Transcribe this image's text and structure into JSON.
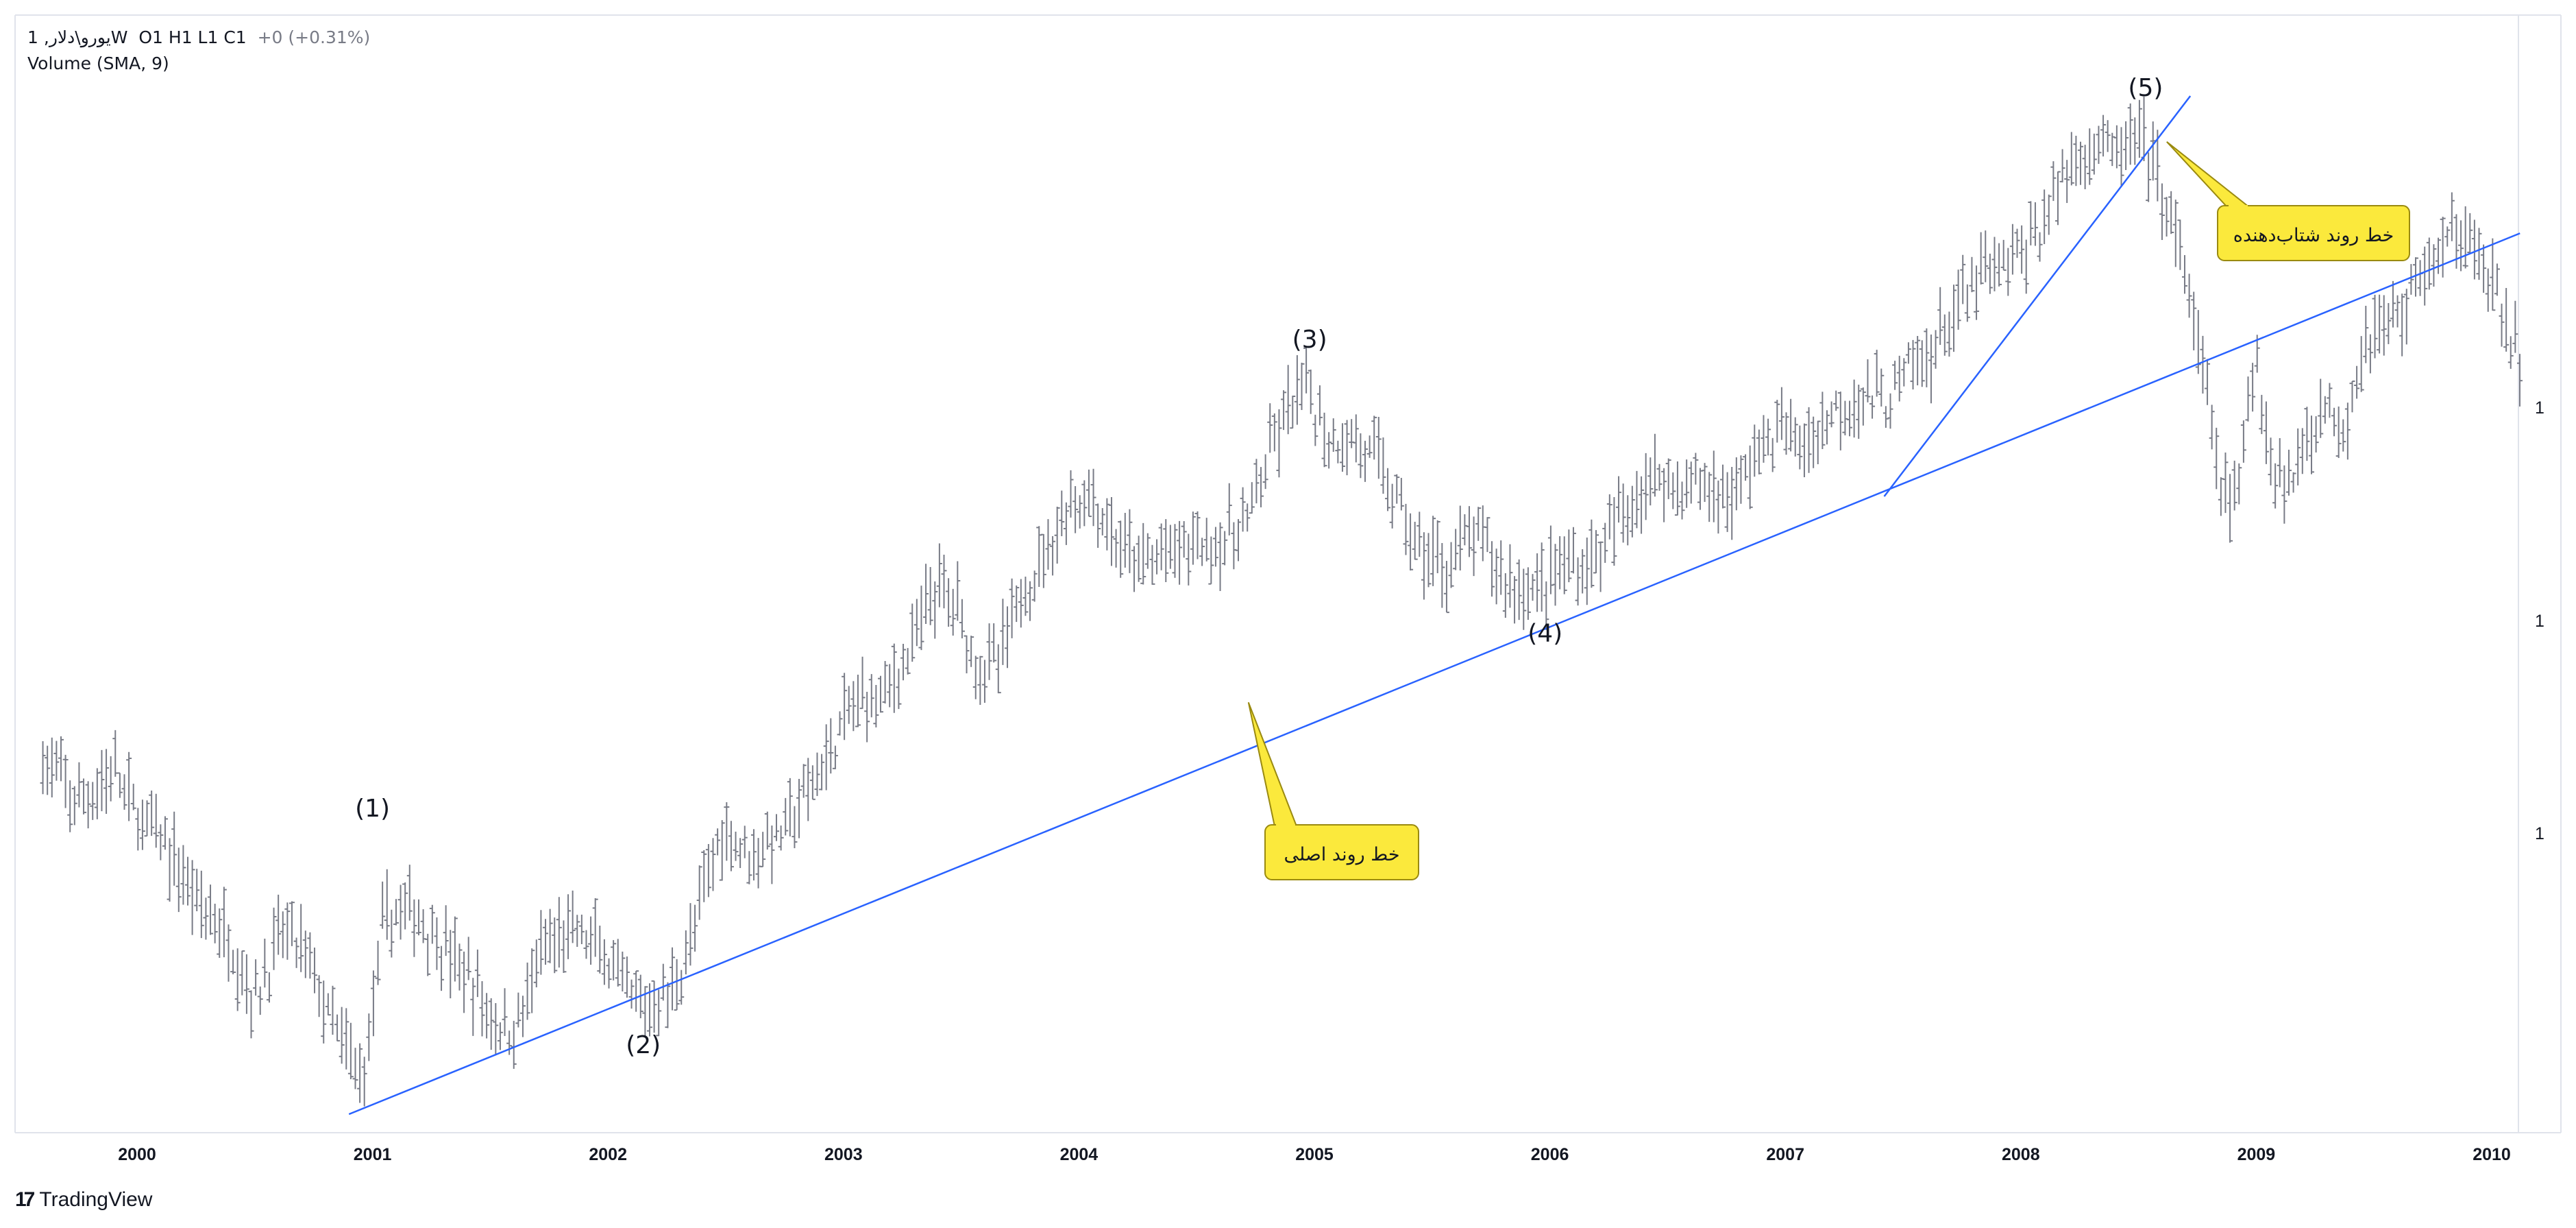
{
  "header": {
    "symbol": "1 ,یورو\\دلارW",
    "ohlc": "O1  H1  L1  C1",
    "change": "+0 (+0.31%)",
    "indicator": "Volume (SMA, 9)"
  },
  "footer": {
    "logo_mark": "17",
    "brand": "TradingView"
  },
  "colors": {
    "bars": "#787b86",
    "trendline": "#2962ff",
    "callout_fill": "#fbe93c",
    "callout_border": "#9a8a10",
    "axis_text": "#131722",
    "grid_border": "#e0e3eb"
  },
  "chart_data": {
    "type": "ohlc-bar",
    "title": "",
    "x_axis": {
      "labels": [
        "2000",
        "2001",
        "2002",
        "2003",
        "2004",
        "2005",
        "2006",
        "2007",
        "2008",
        "2009",
        "2010"
      ]
    },
    "y_axis": {
      "labels": [
        "1",
        "1",
        "1"
      ]
    },
    "price_series": [
      [
        1999.6,
        1.03
      ],
      [
        1999.75,
        0.99
      ],
      [
        1999.9,
        1.02
      ],
      [
        2000.0,
        0.98
      ],
      [
        2000.1,
        0.96
      ],
      [
        2000.25,
        0.91
      ],
      [
        2000.4,
        0.87
      ],
      [
        2000.5,
        0.82
      ],
      [
        2000.62,
        0.88
      ],
      [
        2000.72,
        0.86
      ],
      [
        2000.82,
        0.8
      ],
      [
        2000.9,
        0.77
      ],
      [
        2000.96,
        0.75
      ],
      [
        2001.05,
        0.89
      ],
      [
        2001.15,
        0.9
      ],
      [
        2001.25,
        0.88
      ],
      [
        2001.4,
        0.84
      ],
      [
        2001.52,
        0.8
      ],
      [
        2001.6,
        0.79
      ],
      [
        2001.72,
        0.86
      ],
      [
        2001.85,
        0.88
      ],
      [
        2001.98,
        0.86
      ],
      [
        2002.05,
        0.83
      ],
      [
        2002.15,
        0.81
      ],
      [
        2002.28,
        0.83
      ],
      [
        2002.38,
        0.89
      ],
      [
        2002.48,
        0.97
      ],
      [
        2002.6,
        0.95
      ],
      [
        2002.72,
        0.96
      ],
      [
        2002.85,
        1.0
      ],
      [
        2002.95,
        1.04
      ],
      [
        2003.05,
        1.08
      ],
      [
        2003.18,
        1.09
      ],
      [
        2003.3,
        1.13
      ],
      [
        2003.38,
        1.18
      ],
      [
        2003.48,
        1.17
      ],
      [
        2003.55,
        1.12
      ],
      [
        2003.65,
        1.11
      ],
      [
        2003.75,
        1.17
      ],
      [
        2003.85,
        1.21
      ],
      [
        2003.95,
        1.25
      ],
      [
        2004.05,
        1.26
      ],
      [
        2004.15,
        1.22
      ],
      [
        2004.25,
        1.2
      ],
      [
        2004.38,
        1.21
      ],
      [
        2004.5,
        1.22
      ],
      [
        2004.62,
        1.22
      ],
      [
        2004.72,
        1.24
      ],
      [
        2004.82,
        1.3
      ],
      [
        2004.9,
        1.34
      ],
      [
        2004.98,
        1.35
      ],
      [
        2005.05,
        1.31
      ],
      [
        2005.15,
        1.31
      ],
      [
        2005.22,
        1.3
      ],
      [
        2005.3,
        1.28
      ],
      [
        2005.38,
        1.24
      ],
      [
        2005.45,
        1.21
      ],
      [
        2005.55,
        1.2
      ],
      [
        2005.65,
        1.22
      ],
      [
        2005.72,
        1.22
      ],
      [
        2005.8,
        1.19
      ],
      [
        2005.88,
        1.18
      ],
      [
        2005.95,
        1.18
      ],
      [
        2006.05,
        1.2
      ],
      [
        2006.15,
        1.2
      ],
      [
        2006.25,
        1.22
      ],
      [
        2006.35,
        1.26
      ],
      [
        2006.45,
        1.28
      ],
      [
        2006.55,
        1.27
      ],
      [
        2006.65,
        1.27
      ],
      [
        2006.78,
        1.26
      ],
      [
        2006.88,
        1.3
      ],
      [
        2006.98,
        1.32
      ],
      [
        2007.08,
        1.3
      ],
      [
        2007.18,
        1.33
      ],
      [
        2007.3,
        1.35
      ],
      [
        2007.42,
        1.34
      ],
      [
        2007.52,
        1.37
      ],
      [
        2007.6,
        1.38
      ],
      [
        2007.72,
        1.42
      ],
      [
        2007.82,
        1.45
      ],
      [
        2007.92,
        1.46
      ],
      [
        2008.0,
        1.47
      ],
      [
        2008.1,
        1.5
      ],
      [
        2008.2,
        1.55
      ],
      [
        2008.3,
        1.57
      ],
      [
        2008.4,
        1.56
      ],
      [
        2008.48,
        1.57
      ],
      [
        2008.55,
        1.56
      ],
      [
        2008.62,
        1.51
      ],
      [
        2008.7,
        1.45
      ],
      [
        2008.78,
        1.36
      ],
      [
        2008.85,
        1.27
      ],
      [
        2008.92,
        1.25
      ],
      [
        2008.96,
        1.32
      ],
      [
        2009.0,
        1.39
      ],
      [
        2009.05,
        1.3
      ],
      [
        2009.15,
        1.27
      ],
      [
        2009.22,
        1.32
      ],
      [
        2009.3,
        1.34
      ],
      [
        2009.38,
        1.32
      ],
      [
        2009.46,
        1.4
      ],
      [
        2009.55,
        1.41
      ],
      [
        2009.62,
        1.42
      ],
      [
        2009.7,
        1.46
      ],
      [
        2009.78,
        1.47
      ],
      [
        2009.85,
        1.49
      ],
      [
        2009.9,
        1.5
      ],
      [
        2009.95,
        1.46
      ],
      [
        2010.03,
        1.43
      ],
      [
        2010.1,
        1.39
      ],
      [
        2010.12,
        1.36
      ]
    ],
    "wave_labels": [
      {
        "text": "(1)",
        "x": 2001.0,
        "y": 0.98,
        "pos": "above"
      },
      {
        "text": "(2)",
        "x": 2002.15,
        "y": 0.79,
        "pos": "below"
      },
      {
        "text": "(3)",
        "x": 2004.98,
        "y": 1.39,
        "pos": "above"
      },
      {
        "text": "(4)",
        "x": 2005.98,
        "y": 1.15,
        "pos": "below"
      },
      {
        "text": "(5)",
        "x": 2008.53,
        "y": 1.61,
        "pos": "above"
      }
    ],
    "trendlines": [
      {
        "name": "main",
        "p1": [
          2000.9,
          0.72
        ],
        "p2": [
          2010.12,
          1.49
        ]
      },
      {
        "name": "accelerating",
        "p1": [
          2007.42,
          1.26
        ],
        "p2": [
          2008.72,
          1.61
        ]
      }
    ],
    "callouts": [
      {
        "text": "خط روند اصلی",
        "anchor": [
          2004.72,
          1.08
        ],
        "line": "main"
      },
      {
        "text": "خط روند شتاب‌دهنده",
        "anchor": [
          2008.62,
          1.57
        ],
        "line": "accelerating"
      }
    ]
  }
}
